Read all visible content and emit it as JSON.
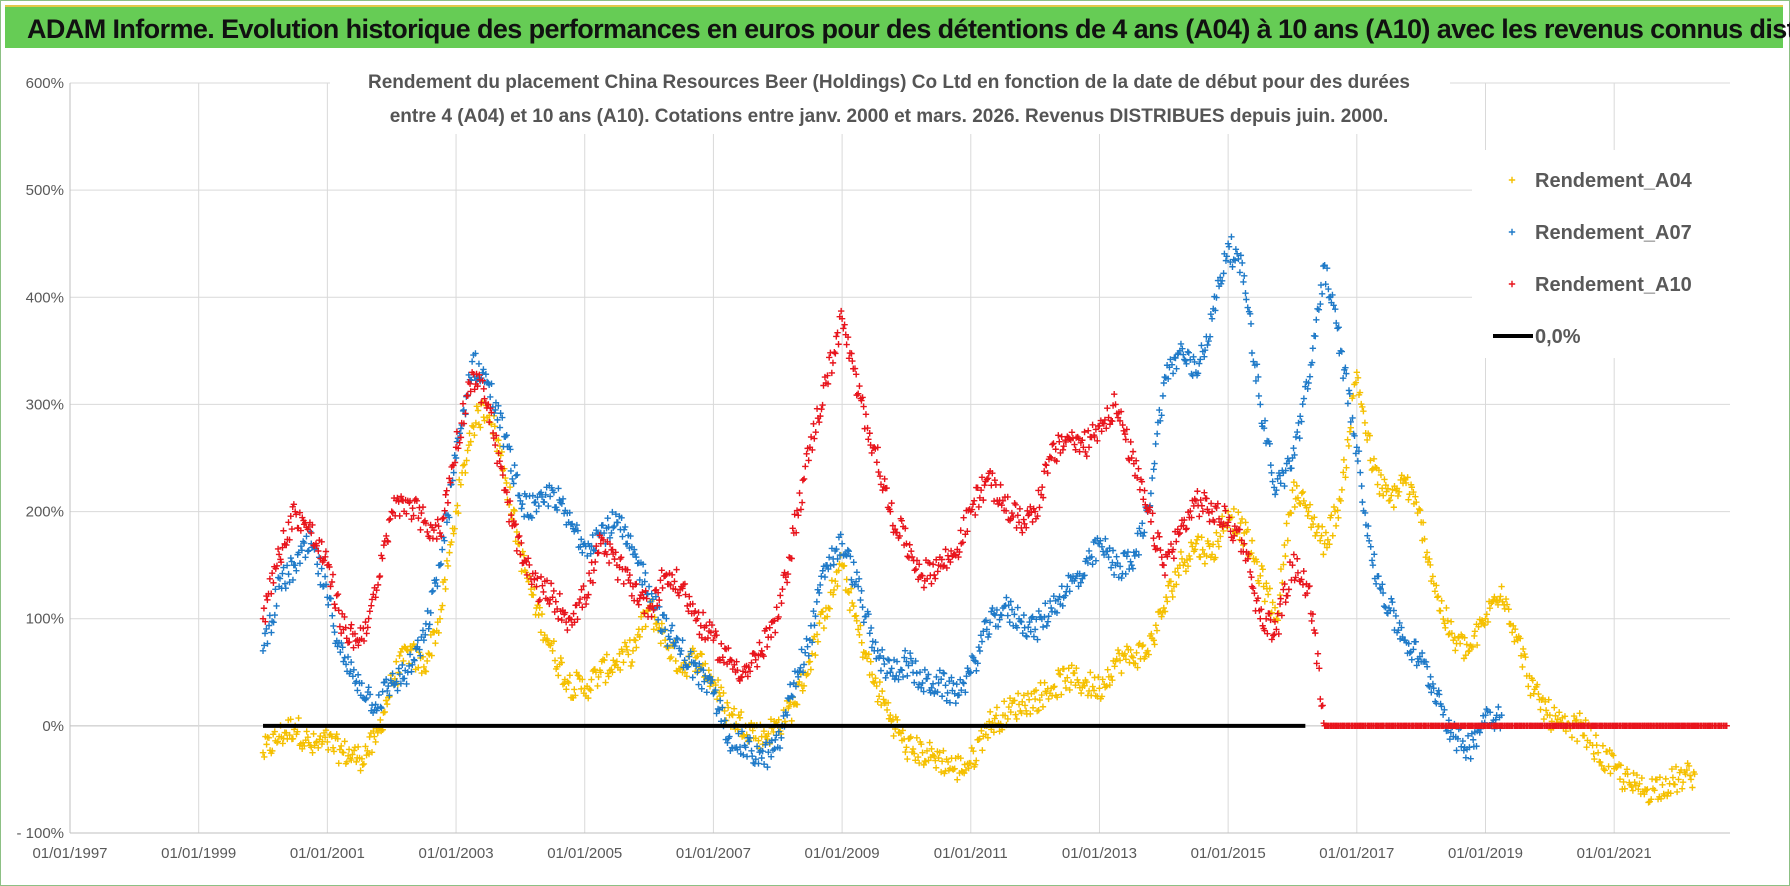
{
  "header": {
    "banner_title": "ADAM Informe. Evolution historique des performances en euros pour des détentions de 4 ans (A04) à 10 ans (A10) avec les revenus connus distribués"
  },
  "chart_data": {
    "type": "scatter",
    "title_line1": "Rendement du placement China Resources Beer (Holdings) Co Ltd en fonction de la date de début pour des durées",
    "title_line2": "entre 4 (A04) et 10 ans (A10).  Cotations entre janv. 2000 et mars. 2026. Revenus DISTRIBUES depuis juin. 2000.",
    "xlabel": "",
    "ylabel": "",
    "xlim": [
      1997.0,
      2022.8
    ],
    "ylim": [
      -100,
      600
    ],
    "x_ticks": [
      {
        "v": 1997,
        "label": "01/01/1997"
      },
      {
        "v": 1999,
        "label": "01/01/1999"
      },
      {
        "v": 2001,
        "label": "01/01/2001"
      },
      {
        "v": 2003,
        "label": "01/01/2003"
      },
      {
        "v": 2005,
        "label": "01/01/2005"
      },
      {
        "v": 2007,
        "label": "01/01/2007"
      },
      {
        "v": 2009,
        "label": "01/01/2009"
      },
      {
        "v": 2011,
        "label": "01/01/2011"
      },
      {
        "v": 2013,
        "label": "01/01/2013"
      },
      {
        "v": 2015,
        "label": "01/01/2015"
      },
      {
        "v": 2017,
        "label": "01/01/2017"
      },
      {
        "v": 2019,
        "label": "01/01/2019"
      },
      {
        "v": 2021,
        "label": "01/01/2021"
      }
    ],
    "y_ticks": [
      {
        "v": -100,
        "label": "- 100%"
      },
      {
        "v": 0,
        "label": "0%"
      },
      {
        "v": 100,
        "label": "100%"
      },
      {
        "v": 200,
        "label": "200%"
      },
      {
        "v": 300,
        "label": "300%"
      },
      {
        "v": 400,
        "label": "400%"
      },
      {
        "v": 500,
        "label": "500%"
      },
      {
        "v": 600,
        "label": "600%"
      }
    ],
    "grid": true,
    "legend_position": "top-right",
    "series": [
      {
        "name": "Rendement_A04",
        "color": "#f5c000",
        "marker": "+",
        "x": [
          2000.0,
          2000.25,
          2000.5,
          2000.75,
          2001.0,
          2001.25,
          2001.5,
          2001.75,
          2002.0,
          2002.25,
          2002.5,
          2002.75,
          2003.0,
          2003.25,
          2003.5,
          2003.75,
          2004.0,
          2004.25,
          2004.5,
          2004.75,
          2005.0,
          2005.25,
          2005.5,
          2005.75,
          2006.0,
          2006.25,
          2006.5,
          2006.75,
          2007.0,
          2007.25,
          2007.5,
          2007.75,
          2008.0,
          2008.25,
          2008.5,
          2008.75,
          2009.0,
          2009.25,
          2009.5,
          2009.75,
          2010.0,
          2010.25,
          2010.5,
          2010.75,
          2011.0,
          2011.25,
          2011.5,
          2011.75,
          2012.0,
          2012.25,
          2012.5,
          2012.75,
          2013.0,
          2013.25,
          2013.5,
          2013.75,
          2014.0,
          2014.25,
          2014.5,
          2014.75,
          2015.0,
          2015.25,
          2015.5,
          2015.75,
          2016.0,
          2016.25,
          2016.5,
          2016.75,
          2017.0,
          2017.25,
          2017.5,
          2017.75,
          2018.0,
          2018.25,
          2018.5,
          2018.75,
          2019.0,
          2019.25,
          2019.5,
          2019.75,
          2020.0,
          2020.25,
          2020.5,
          2020.75,
          2021.0,
          2021.25,
          2021.5,
          2021.75,
          2022.0,
          2022.25
        ],
        "y": [
          -25,
          -10,
          0,
          -20,
          -15,
          -25,
          -30,
          -15,
          40,
          70,
          55,
          100,
          200,
          280,
          300,
          240,
          160,
          110,
          70,
          40,
          35,
          50,
          60,
          70,
          110,
          80,
          55,
          65,
          40,
          10,
          0,
          -10,
          0,
          20,
          60,
          110,
          150,
          90,
          40,
          10,
          -20,
          -25,
          -30,
          -40,
          -35,
          0,
          10,
          20,
          25,
          35,
          45,
          40,
          35,
          60,
          65,
          70,
          110,
          150,
          170,
          160,
          200,
          180,
          140,
          100,
          220,
          200,
          170,
          210,
          330,
          240,
          210,
          230,
          190,
          120,
          80,
          70,
          100,
          130,
          80,
          30,
          10,
          -5,
          0,
          -25,
          -40,
          -55,
          -60,
          -55,
          -50,
          -45
        ]
      },
      {
        "name": "Rendement_A07",
        "color": "#1f7ac8",
        "marker": "+",
        "x": [
          2000.0,
          2000.25,
          2000.5,
          2000.75,
          2001.0,
          2001.25,
          2001.5,
          2001.75,
          2002.0,
          2002.25,
          2002.5,
          2002.75,
          2003.0,
          2003.25,
          2003.5,
          2003.75,
          2004.0,
          2004.25,
          2004.5,
          2004.75,
          2005.0,
          2005.25,
          2005.5,
          2005.75,
          2006.0,
          2006.25,
          2006.5,
          2006.75,
          2007.0,
          2007.25,
          2007.5,
          2007.75,
          2008.0,
          2008.25,
          2008.5,
          2008.75,
          2009.0,
          2009.25,
          2009.5,
          2009.75,
          2010.0,
          2010.25,
          2010.5,
          2010.75,
          2011.0,
          2011.25,
          2011.5,
          2011.75,
          2012.0,
          2012.25,
          2012.5,
          2012.75,
          2013.0,
          2013.25,
          2013.5,
          2013.75,
          2014.0,
          2014.25,
          2014.5,
          2014.75,
          2015.0,
          2015.25,
          2015.5,
          2015.75,
          2016.0,
          2016.25,
          2016.5,
          2016.75,
          2017.0,
          2017.25,
          2017.5,
          2017.75,
          2018.0,
          2018.25,
          2018.5,
          2018.75,
          2019.0,
          2019.25
        ],
        "y": [
          70,
          130,
          150,
          170,
          120,
          60,
          40,
          20,
          40,
          50,
          80,
          150,
          250,
          340,
          320,
          270,
          210,
          200,
          220,
          190,
          170,
          180,
          190,
          160,
          130,
          90,
          70,
          50,
          30,
          -10,
          -20,
          -30,
          -20,
          40,
          80,
          150,
          170,
          130,
          70,
          50,
          60,
          40,
          40,
          30,
          50,
          90,
          110,
          100,
          90,
          110,
          130,
          140,
          170,
          150,
          150,
          200,
          320,
          350,
          330,
          380,
          450,
          420,
          300,
          220,
          250,
          320,
          430,
          350,
          260,
          150,
          110,
          80,
          60,
          30,
          -10,
          -20,
          10,
          10
        ]
      },
      {
        "name": "Rendement_A10",
        "color": "#e8141c",
        "marker": "+",
        "x": [
          2000.0,
          2000.25,
          2000.5,
          2000.75,
          2001.0,
          2001.25,
          2001.5,
          2001.75,
          2002.0,
          2002.25,
          2002.5,
          2002.75,
          2003.0,
          2003.25,
          2003.5,
          2003.75,
          2004.0,
          2004.25,
          2004.5,
          2004.75,
          2005.0,
          2005.25,
          2005.5,
          2005.75,
          2006.0,
          2006.25,
          2006.5,
          2006.75,
          2007.0,
          2007.25,
          2007.5,
          2007.75,
          2008.0,
          2008.25,
          2008.5,
          2008.75,
          2009.0,
          2009.25,
          2009.5,
          2009.75,
          2010.0,
          2010.25,
          2010.5,
          2010.75,
          2011.0,
          2011.25,
          2011.5,
          2011.75,
          2012.0,
          2012.25,
          2012.5,
          2012.75,
          2013.0,
          2013.25,
          2013.5,
          2013.75,
          2014.0,
          2014.25,
          2014.5,
          2014.75,
          2015.0,
          2015.25,
          2015.5,
          2015.75,
          2016.0,
          2016.25,
          2016.5,
          2016.75,
          2017.0,
          2017.25,
          2017.5,
          2017.75,
          2018.0,
          2018.25,
          2018.5,
          2018.75,
          2019.0,
          2019.25,
          2019.5,
          2019.75,
          2020.0,
          2020.25,
          2020.5,
          2020.75,
          2021.0,
          2021.25,
          2021.5,
          2021.75,
          2022.0,
          2022.25,
          2022.5,
          2022.75
        ],
        "y": [
          100,
          160,
          200,
          180,
          150,
          90,
          80,
          120,
          200,
          210,
          190,
          180,
          260,
          330,
          300,
          220,
          160,
          130,
          120,
          100,
          120,
          170,
          150,
          130,
          110,
          140,
          130,
          100,
          80,
          60,
          50,
          70,
          100,
          180,
          260,
          320,
          380,
          310,
          260,
          200,
          170,
          140,
          150,
          160,
          200,
          230,
          210,
          190,
          200,
          250,
          270,
          260,
          280,
          300,
          250,
          200,
          150,
          180,
          210,
          200,
          190,
          170,
          100,
          90,
          150,
          130,
          0,
          0,
          0,
          0,
          0,
          0,
          0,
          0,
          0,
          0,
          0,
          0,
          0,
          0,
          0,
          0,
          0,
          0,
          0,
          0,
          0,
          0,
          0,
          0,
          0,
          0
        ]
      }
    ],
    "reference_line": {
      "name": "0,0%",
      "color": "#000000",
      "value": 0,
      "x_start": 2000.0,
      "x_end": 2016.2
    }
  }
}
